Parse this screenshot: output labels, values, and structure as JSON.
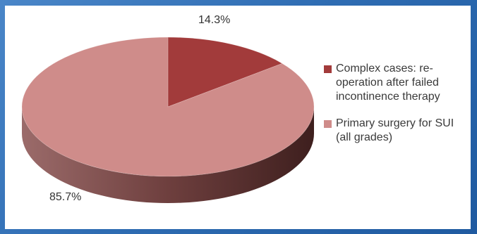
{
  "chart_data": {
    "type": "pie",
    "title": "",
    "three_d": true,
    "legend_position": "right",
    "slices": [
      {
        "label": "Complex cases: re-operation after failed incontinence therapy",
        "value": 14.3,
        "value_label": "14.3%",
        "color": "#a23b3b"
      },
      {
        "label": "Primary surgery for SUI (all grades)",
        "value": 85.7,
        "value_label": "85.7%",
        "color": "#cf8c8a"
      }
    ]
  }
}
